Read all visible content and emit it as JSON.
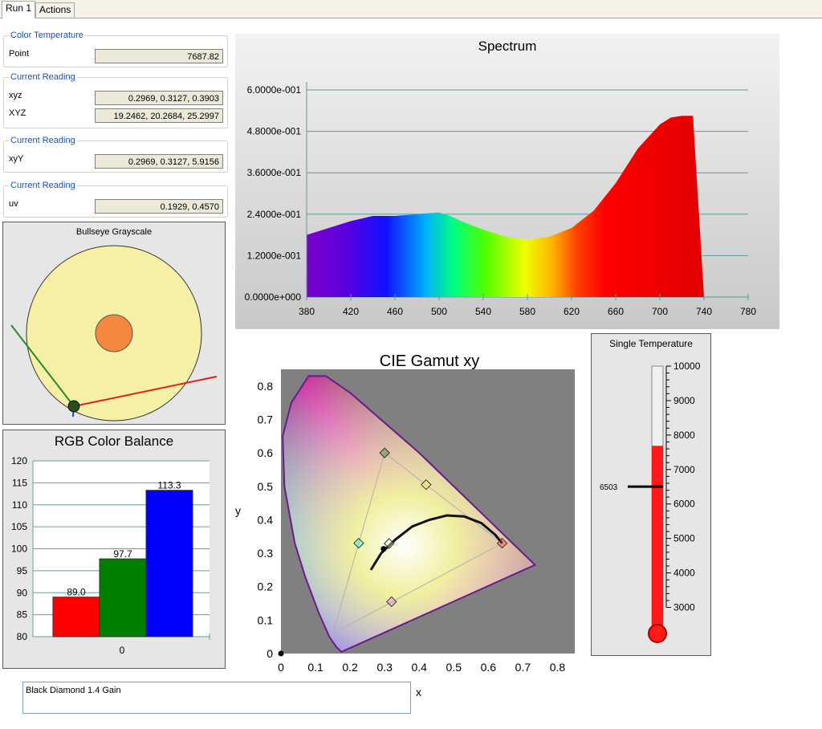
{
  "tabs": [
    "Run 1",
    "Actions"
  ],
  "readings": {
    "color_temp": {
      "title": "Color Temperature",
      "label": "Point",
      "value": "7687.82"
    },
    "current1": {
      "title": "Current Reading",
      "xyz_label": "xyz",
      "xyz_value": "0.2969, 0.3127, 0.3903",
      "XYZ_label": "XYZ",
      "XYZ_value": "19.2462, 20.2684, 25.2997"
    },
    "current2": {
      "title": "Current Reading",
      "label": "xyY",
      "value": "0.2969, 0.3127, 5.9156"
    },
    "current3": {
      "title": "Current Reading",
      "label": "uv",
      "value": "0.1929, 0.4570"
    }
  },
  "bullseye": {
    "title": "Bullseye Grayscale"
  },
  "rgb_balance": {
    "title": "RGB Color Balance",
    "chart_data": {
      "type": "bar",
      "categories": [
        "0"
      ],
      "series": [
        {
          "values": [
            89.0
          ],
          "color": "#ff0000"
        },
        {
          "values": [
            97.7
          ],
          "color": "#008000"
        },
        {
          "values": [
            113.3
          ],
          "color": "#0000ff"
        }
      ],
      "data_labels": [
        "89.0",
        "97.7",
        "113.3"
      ],
      "ylim": [
        80,
        120
      ],
      "yticks": [
        "80",
        "85",
        "90",
        "95",
        "100",
        "105",
        "110",
        "115",
        "120"
      ]
    }
  },
  "spectrum": {
    "title": "Spectrum",
    "chart_data": {
      "type": "area",
      "xlim": [
        380,
        780
      ],
      "ylim": [
        0,
        0.6
      ],
      "xticks": [
        "380",
        "420",
        "460",
        "500",
        "540",
        "580",
        "620",
        "660",
        "700",
        "740",
        "780"
      ],
      "yticks": [
        "0.0000e+000",
        "1.2000e-001",
        "2.4000e-001",
        "3.6000e-001",
        "4.8000e-001",
        "6.0000e-001"
      ],
      "x": [
        380,
        400,
        420,
        440,
        460,
        480,
        500,
        510,
        520,
        540,
        560,
        580,
        600,
        620,
        640,
        660,
        680,
        700,
        710,
        720,
        730,
        740
      ],
      "y": [
        0.18,
        0.2,
        0.22,
        0.235,
        0.235,
        0.24,
        0.245,
        0.235,
        0.22,
        0.195,
        0.175,
        0.165,
        0.175,
        0.2,
        0.25,
        0.33,
        0.43,
        0.5,
        0.52,
        0.525,
        0.525,
        0.0
      ]
    }
  },
  "cie": {
    "title": "CIE Gamut xy",
    "chart_data": {
      "type": "scatter",
      "xlabel": "x",
      "ylabel": "y",
      "xlim": [
        0,
        0.85
      ],
      "ylim": [
        0,
        0.85
      ],
      "xticks": [
        "0",
        "0.1",
        "0.2",
        "0.3",
        "0.4",
        "0.5",
        "0.6",
        "0.7",
        "0.8"
      ],
      "yticks": [
        "0",
        "0.1",
        "0.2",
        "0.3",
        "0.4",
        "0.5",
        "0.6",
        "0.7",
        "0.8"
      ],
      "triangle": [
        [
          0.64,
          0.33
        ],
        [
          0.3,
          0.6
        ],
        [
          0.15,
          0.06
        ]
      ],
      "markers": [
        {
          "x": 0.3,
          "y": 0.6,
          "color": "#1f7a1f"
        },
        {
          "x": 0.64,
          "y": 0.33,
          "color": "#ff3a3a"
        },
        {
          "x": 0.42,
          "y": 0.505,
          "color": "#ffff66"
        },
        {
          "x": 0.225,
          "y": 0.33,
          "color": "#00ffff"
        },
        {
          "x": 0.32,
          "y": 0.155,
          "color": "#ff66ff"
        },
        {
          "x": 0.313,
          "y": 0.329,
          "color": "#ffffff"
        }
      ],
      "measured_point": {
        "x": 0.297,
        "y": 0.313
      }
    }
  },
  "thermometer": {
    "title": "Single Temperature",
    "ticks": [
      "10000",
      "9000",
      "8000",
      "7000",
      "6000",
      "5000",
      "4000",
      "3000"
    ],
    "range": [
      2500,
      10000
    ],
    "value": 7687.82,
    "target_label": "6503",
    "target": 6503
  },
  "notes": {
    "text": "Black Diamond 1.4 Gain",
    "x_label": "x"
  }
}
